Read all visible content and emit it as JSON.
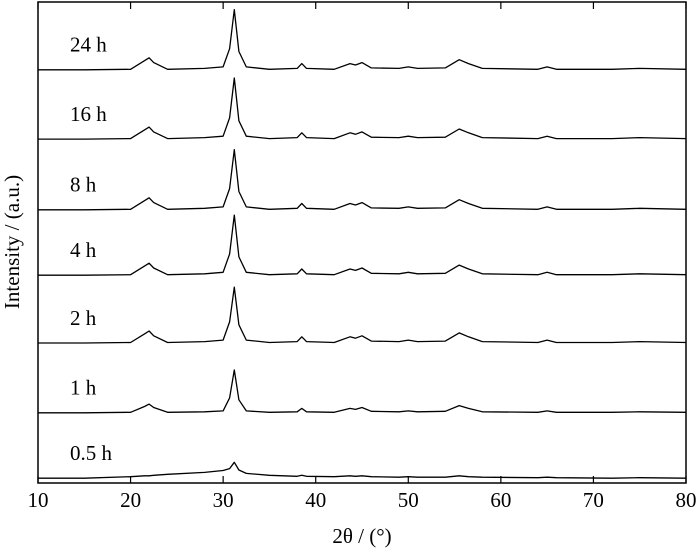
{
  "chart_data": {
    "type": "line",
    "xlabel": "2θ / (°)",
    "ylabel": "Intensity / (a.u.)",
    "x": [
      10,
      15,
      20,
      21.5,
      22,
      22.5,
      24,
      28,
      30,
      30.7,
      31.2,
      31.7,
      32.5,
      35,
      38,
      38.5,
      39,
      42,
      43.7,
      44.3,
      45,
      46,
      49,
      50,
      51,
      54,
      55.5,
      56.5,
      58,
      64,
      65,
      66,
      72,
      75,
      80
    ],
    "xlim": [
      10,
      80
    ],
    "xticks": [
      10,
      20,
      30,
      40,
      50,
      60,
      70,
      80
    ],
    "ylim": [
      0,
      100
    ],
    "series": [
      {
        "name": "24 h",
        "color": "#000000",
        "values": [
          85.9,
          85.9,
          86.0,
          87.8,
          88.4,
          87.4,
          86.0,
          86.2,
          86.5,
          90.3,
          98.4,
          89.7,
          86.5,
          86.0,
          86.2,
          87.2,
          86.2,
          86.0,
          87.2,
          86.9,
          87.4,
          86.3,
          86.2,
          86.5,
          86.2,
          86.3,
          88.0,
          87.2,
          86.2,
          86.0,
          86.5,
          86.0,
          86.0,
          86.2,
          86.0
        ]
      },
      {
        "name": "16 h",
        "color": "#000000",
        "values": [
          71.5,
          71.5,
          71.6,
          73.4,
          74.0,
          73.0,
          71.6,
          71.8,
          72.1,
          75.9,
          84.2,
          75.3,
          72.1,
          71.6,
          71.8,
          72.8,
          71.8,
          71.6,
          72.8,
          72.5,
          73.0,
          71.9,
          71.8,
          72.1,
          71.8,
          71.9,
          73.6,
          72.8,
          71.8,
          71.6,
          72.1,
          71.6,
          71.6,
          71.8,
          71.6
        ]
      },
      {
        "name": "8 h",
        "color": "#000000",
        "values": [
          56.8,
          56.8,
          56.9,
          58.7,
          59.3,
          58.3,
          56.9,
          57.1,
          57.4,
          61.2,
          69.3,
          60.6,
          57.4,
          56.9,
          57.1,
          58.1,
          57.1,
          56.9,
          58.1,
          57.8,
          58.3,
          57.2,
          57.1,
          57.4,
          57.1,
          57.2,
          58.9,
          58.1,
          57.1,
          56.9,
          57.4,
          56.9,
          56.9,
          57.1,
          56.9
        ]
      },
      {
        "name": "4 h",
        "color": "#000000",
        "values": [
          43.2,
          43.2,
          43.3,
          45.1,
          45.7,
          44.7,
          43.3,
          43.5,
          43.8,
          47.6,
          55.7,
          47.0,
          43.8,
          43.3,
          43.5,
          44.5,
          43.5,
          43.3,
          44.5,
          44.2,
          44.7,
          43.6,
          43.5,
          43.8,
          43.5,
          43.6,
          45.3,
          44.5,
          43.5,
          43.3,
          43.8,
          43.3,
          43.3,
          43.5,
          43.3
        ]
      },
      {
        "name": "2 h",
        "color": "#000000",
        "values": [
          29.1,
          29.1,
          29.2,
          31.0,
          31.6,
          30.6,
          29.2,
          29.4,
          29.7,
          33.5,
          40.7,
          32.9,
          29.7,
          29.2,
          29.4,
          30.4,
          29.4,
          29.2,
          30.4,
          30.1,
          30.6,
          29.5,
          29.4,
          29.7,
          29.4,
          29.5,
          31.2,
          30.4,
          29.4,
          29.2,
          29.7,
          29.2,
          29.2,
          29.4,
          29.2
        ]
      },
      {
        "name": "1 h",
        "color": "#000000",
        "values": [
          14.6,
          14.6,
          14.7,
          15.9,
          16.4,
          15.7,
          14.7,
          14.8,
          15.0,
          17.7,
          23.5,
          17.3,
          15.0,
          14.7,
          14.8,
          15.5,
          14.8,
          14.7,
          15.5,
          15.3,
          15.7,
          14.9,
          14.8,
          15.0,
          14.8,
          14.9,
          16.1,
          15.5,
          14.8,
          14.7,
          15.0,
          14.7,
          14.7,
          14.8,
          14.7
        ]
      },
      {
        "name": "0.5 h",
        "color": "#000000",
        "values": [
          1.0,
          1.0,
          1.3,
          1.5,
          1.5,
          1.6,
          1.8,
          2.2,
          2.6,
          3.0,
          4.3,
          2.7,
          2.0,
          1.6,
          1.4,
          1.6,
          1.4,
          1.3,
          1.5,
          1.4,
          1.5,
          1.3,
          1.2,
          1.3,
          1.2,
          1.2,
          1.5,
          1.3,
          1.2,
          1.1,
          1.2,
          1.1,
          1.0,
          1.1,
          1.0
        ]
      }
    ]
  }
}
